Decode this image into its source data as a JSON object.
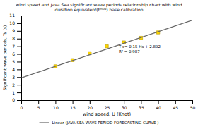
{
  "chart_data": {
    "type": "scatter",
    "title": "wind speed and Java Sea significant wave periods relationship chart with wind\nduration equivalent(tᵐᵁᴺ) base calibration",
    "x_label": "wind speed, U (Knot)",
    "y_label": "Significant wave periods, Ts (s)",
    "series": [
      {
        "type": "scatter",
        "marker": "square",
        "color": "#FFD700",
        "x": [
          10,
          15,
          20,
          25,
          30,
          35,
          40
        ],
        "values": [
          4.4,
          5.2,
          6.1,
          7.0,
          7.5,
          8.1,
          8.8
        ]
      },
      {
        "type": "line",
        "line_style": "solid",
        "color": "#666666",
        "name": "Linear (JAVA SEA WAVE PERIOD FORECASTING CURVE )",
        "x": [
          0,
          50
        ],
        "values": [
          2.892,
          10.392
        ]
      }
    ],
    "annotations": [
      {
        "lines": [
          "T s= 0.15 Hs + 2.892",
          "R² = 0.987"
        ],
        "x": 28.5,
        "y": 7.2
      }
    ],
    "xlim": [
      0,
      50
    ],
    "ylim": [
      0,
      11
    ],
    "xticks": [
      0,
      5,
      10,
      15,
      20,
      25,
      30,
      35,
      40,
      45,
      50
    ],
    "yticks": [
      0,
      1,
      2,
      3,
      4,
      5,
      6,
      7,
      8,
      9,
      10,
      11
    ],
    "grid": false,
    "legend": "bottom"
  }
}
